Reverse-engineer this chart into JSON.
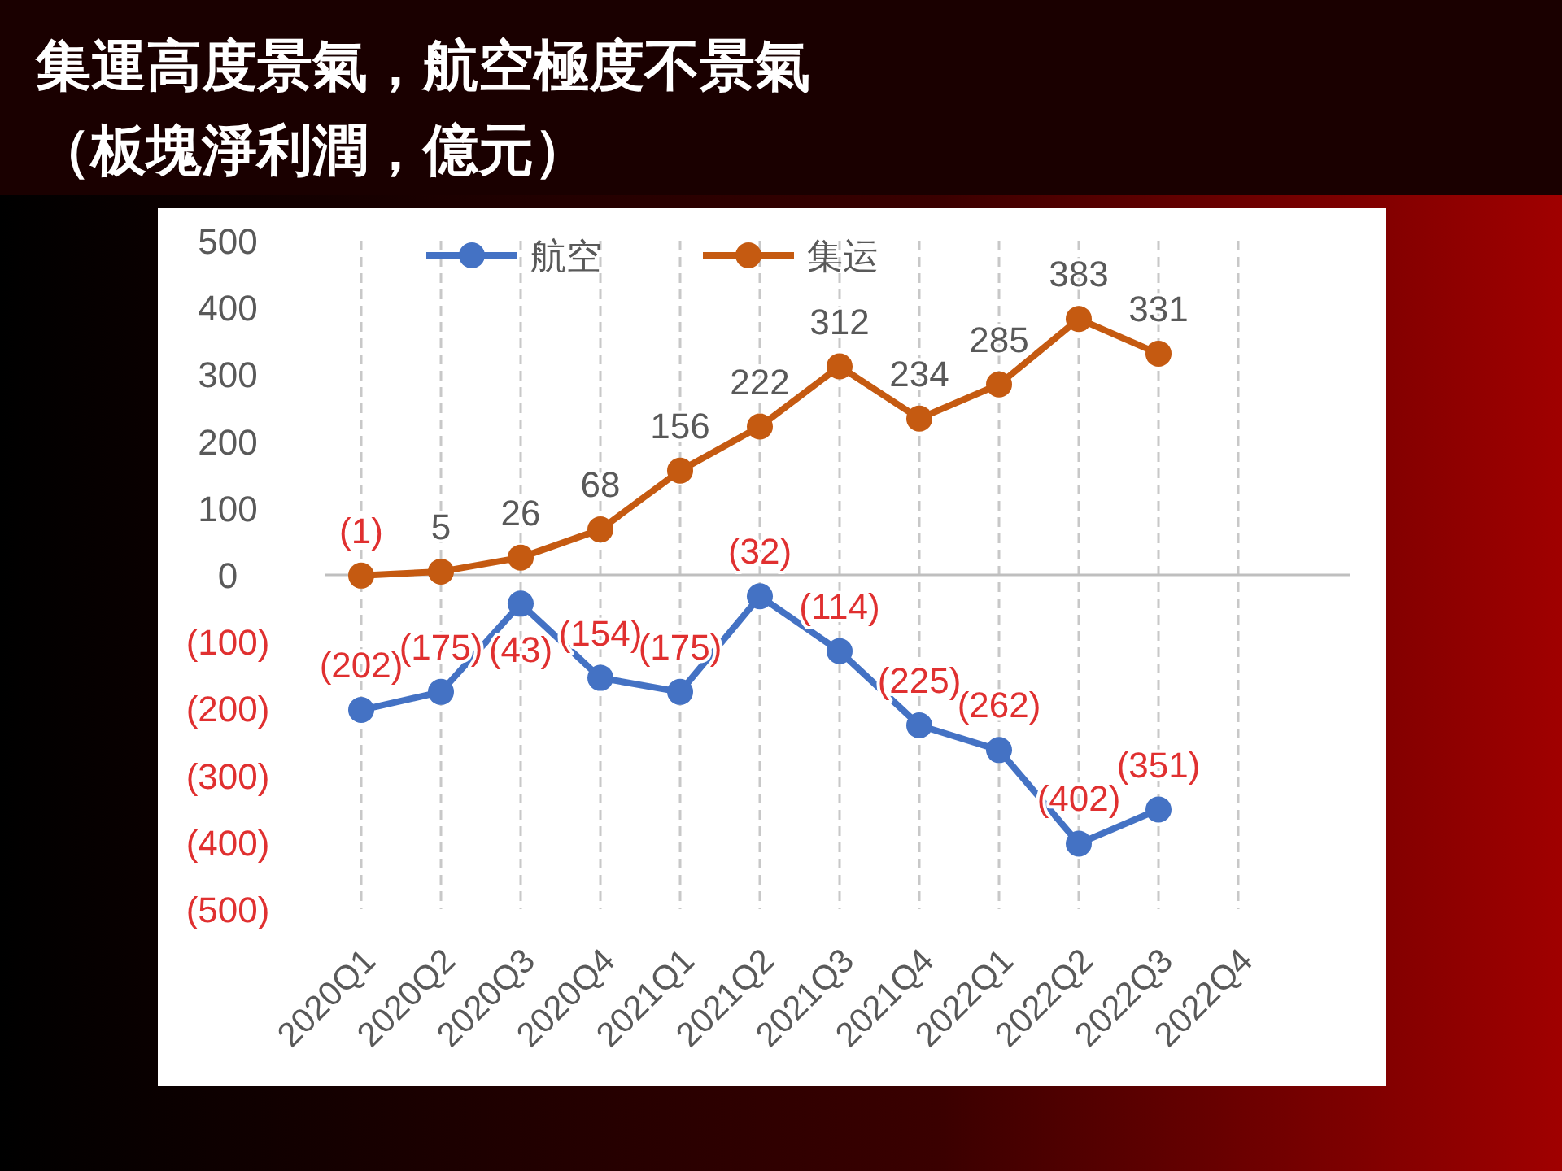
{
  "chart_data": {
    "type": "line",
    "title": "集運高度景氣，航空極度不景氣",
    "subtitle": "（板塊淨利潤，億元）",
    "categories": [
      "2020Q1",
      "2020Q2",
      "2020Q3",
      "2020Q4",
      "2021Q1",
      "2021Q2",
      "2021Q3",
      "2021Q4",
      "2022Q1",
      "2022Q2",
      "2022Q3",
      "2022Q4"
    ],
    "series": [
      {
        "name": "航空",
        "color": "#4472c4",
        "values": [
          -202,
          -175,
          -43,
          -154,
          -175,
          -32,
          -114,
          -225,
          -262,
          -402,
          -351,
          null
        ],
        "value_labels": [
          "(202)",
          "(175)",
          "(43)",
          "(154)",
          "(175)",
          "(32)",
          "(114)",
          "(225)",
          "(262)",
          "(402)",
          "(351)",
          null
        ]
      },
      {
        "name": "集运",
        "color": "#c55a11",
        "values": [
          -1,
          5,
          26,
          68,
          156,
          222,
          312,
          234,
          285,
          383,
          331,
          null
        ],
        "value_labels": [
          "(1)",
          "5",
          "26",
          "68",
          "156",
          "222",
          "312",
          "234",
          "285",
          "383",
          "331",
          null
        ]
      }
    ],
    "ylim": [
      -500,
      500
    ],
    "yticks": [
      {
        "value": -500,
        "label": "(500)"
      },
      {
        "value": -400,
        "label": "(400)"
      },
      {
        "value": -300,
        "label": "(300)"
      },
      {
        "value": -200,
        "label": "(200)"
      },
      {
        "value": -100,
        "label": "(100)"
      },
      0,
      100,
      200,
      300,
      400,
      500
    ],
    "grid": "x",
    "legend": "top",
    "marker": "circle",
    "line_style": "solid"
  }
}
